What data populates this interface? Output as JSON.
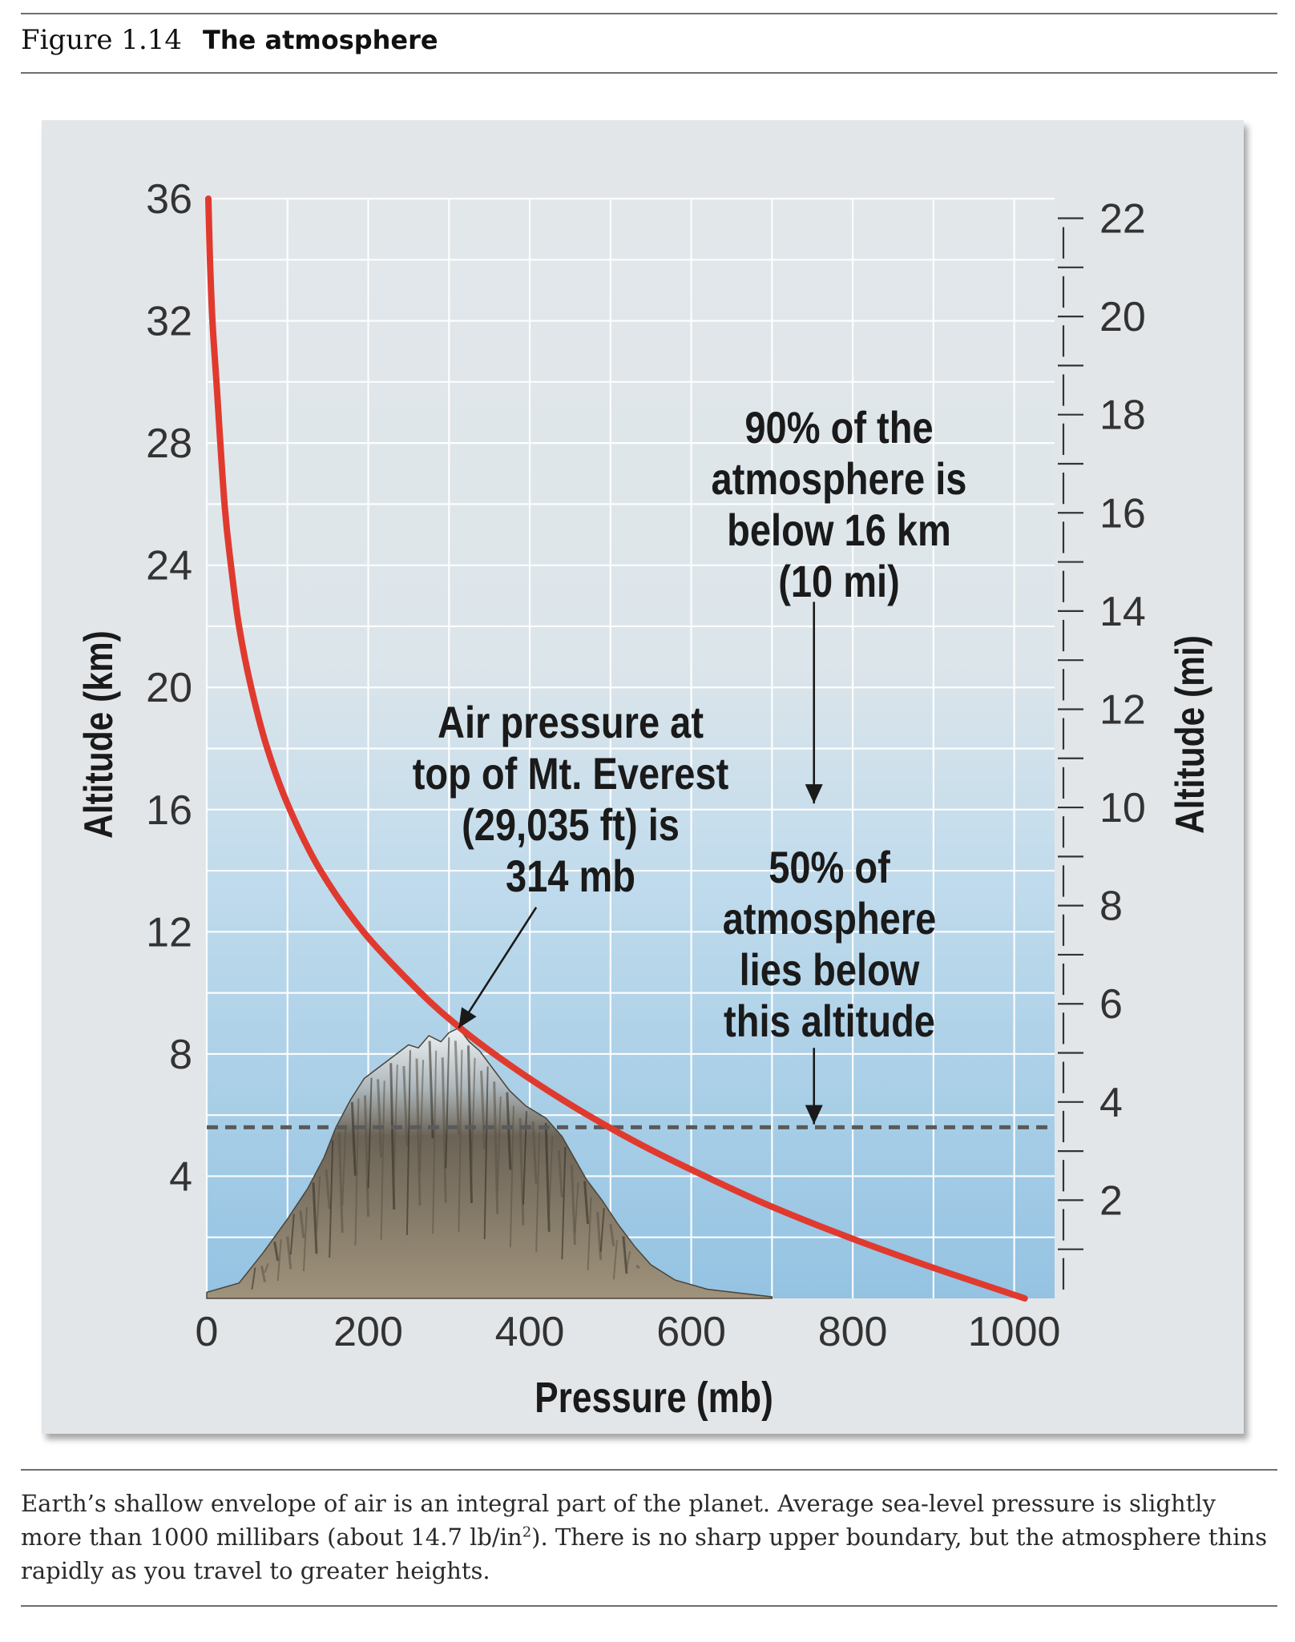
{
  "figure": {
    "number": "Figure 1.14",
    "title": "The atmosphere"
  },
  "caption": {
    "part1": "Earth’s shallow envelope of air is an integral part of the planet. Average sea-level pressure is slightly more than 1000 millibars (about 14.7 lb/in",
    "sup": "2",
    "part2": "). There is no sharp upper boundary, but the atmosphere thins rapidly as you travel to greater heights."
  },
  "chart_data": {
    "type": "line",
    "xlabel": "Pressure (mb)",
    "ylabel": "Altitude (km)",
    "y2label": "Altitude (mi)",
    "xlim": [
      0,
      1050
    ],
    "ylim": [
      0,
      36
    ],
    "y2lim": [
      0,
      22.4
    ],
    "x_ticks": [
      "0",
      "200",
      "400",
      "600",
      "800",
      "1000"
    ],
    "y_ticks": [
      "4",
      "8",
      "12",
      "16",
      "20",
      "24",
      "28",
      "32",
      "36"
    ],
    "y2_ticks": [
      "2",
      "4",
      "6",
      "8",
      "10",
      "12",
      "14",
      "16",
      "18",
      "20",
      "22"
    ],
    "grid": true,
    "series": [
      {
        "color": "#e03a2f",
        "x": [
          1013,
          900,
          795,
          700,
          617,
          540,
          472,
          411,
          356,
          314,
          265,
          194,
          141,
          103,
          75,
          55,
          40,
          30,
          22,
          12,
          7,
          4,
          2
        ],
        "y": [
          0,
          1,
          2,
          3,
          4,
          5,
          6,
          7,
          8,
          8.85,
          10,
          12,
          14,
          16,
          18,
          20,
          22,
          24,
          26,
          30,
          32,
          34,
          36
        ]
      }
    ],
    "reference_line": {
      "y": 5.6,
      "style": "dashed"
    },
    "annotations": [
      {
        "lines": [
          "90% of the",
          "atmosphere is",
          "below 16 km",
          "(10 mi)"
        ],
        "arrow_x": 752,
        "arrow_from_y": 22.8,
        "arrow_to_y": 16.2
      },
      {
        "lines": [
          "50% of",
          "atmosphere",
          "lies below",
          "this altitude"
        ],
        "arrow_x": 752,
        "arrow_from_y": 8.2,
        "arrow_to_y": 5.7
      },
      {
        "lines": [
          "Air pressure at",
          "top of Mt. Everest",
          "(29,035 ft) is",
          "314 mb"
        ],
        "arrow_from": [
          408,
          12.8
        ],
        "arrow_to": [
          312,
          8.85
        ]
      }
    ],
    "illustration": "mountain"
  }
}
